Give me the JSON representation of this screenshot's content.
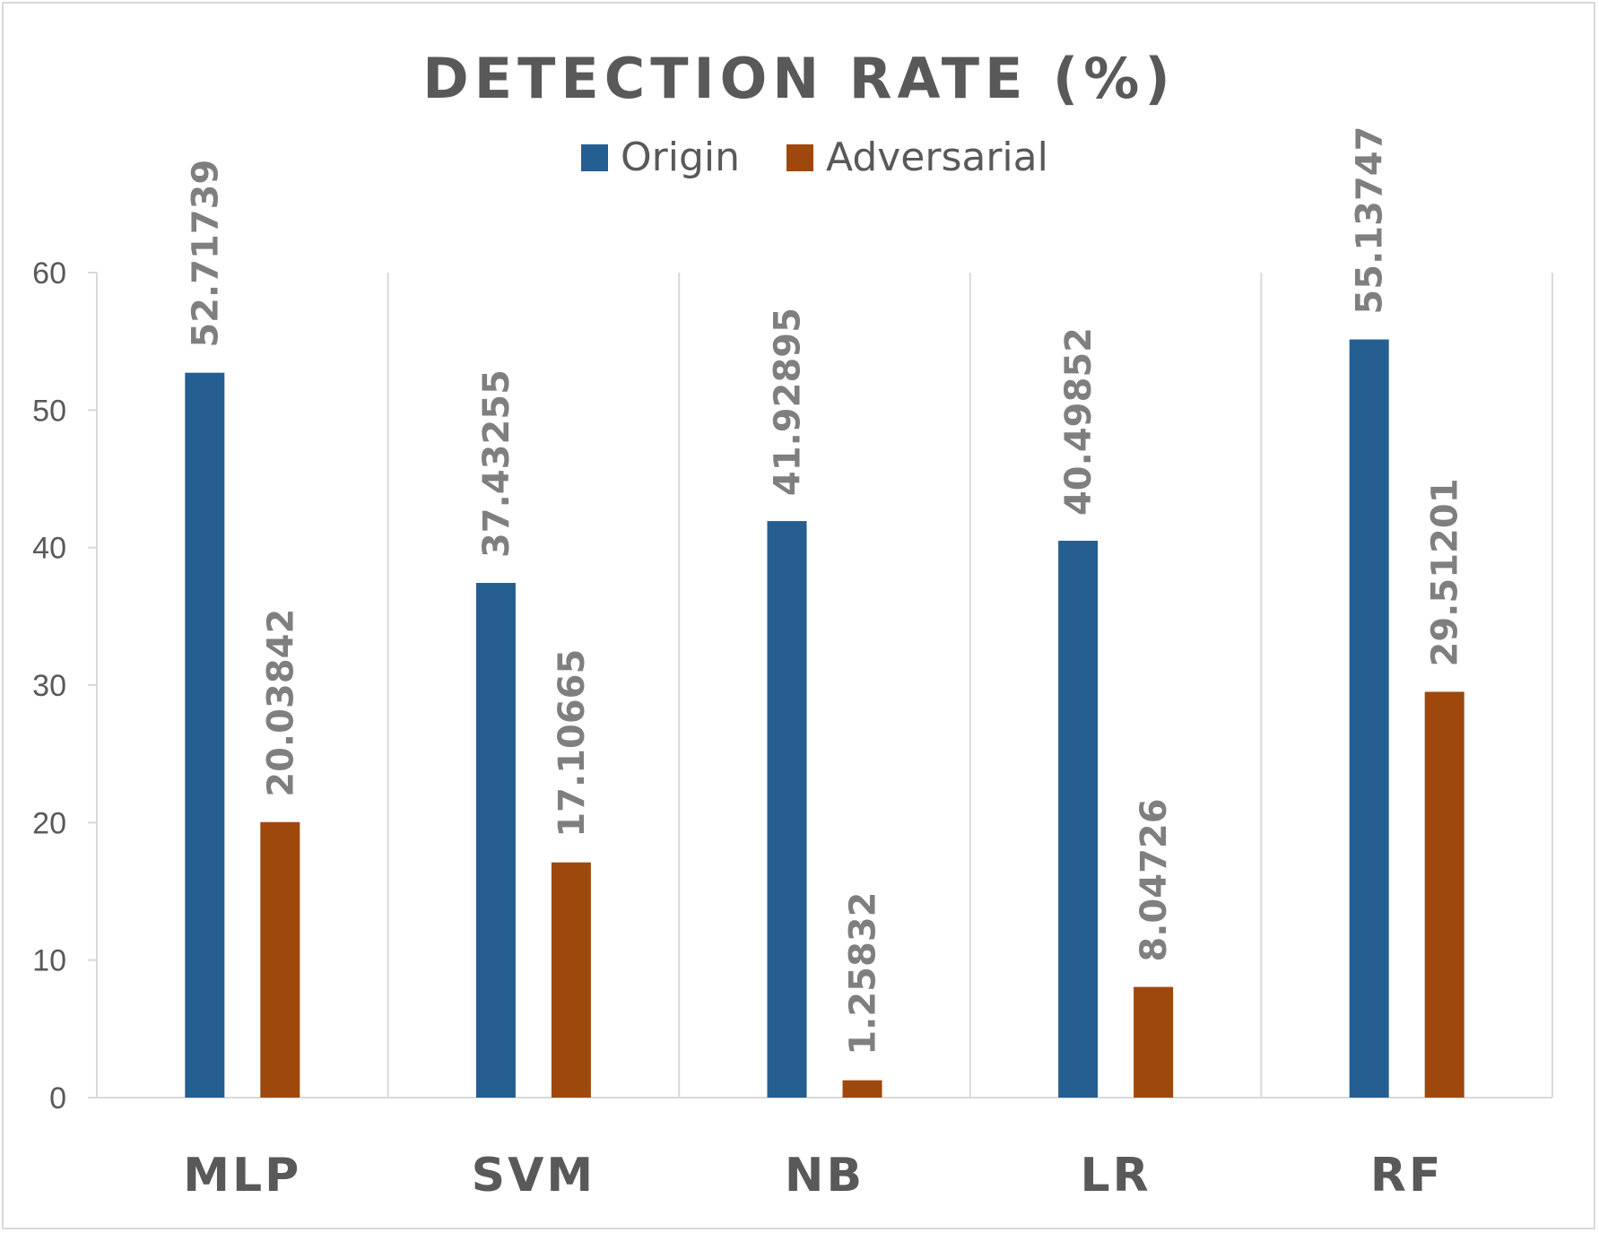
{
  "chart_data": {
    "type": "bar",
    "title": "DETECTION RATE (%)",
    "categories": [
      "MLP",
      "SVM",
      "NB",
      "LR",
      "RF"
    ],
    "series": [
      {
        "name": "Origin",
        "color": "#255e91",
        "values": [
          52.71739,
          37.43255,
          41.92895,
          40.49852,
          55.13747
        ],
        "labels": [
          "52.71739",
          "37.43255",
          "41.92895",
          "40.49852",
          "55.13747"
        ]
      },
      {
        "name": "Adversarial",
        "color": "#9e480e",
        "values": [
          20.03842,
          17.10665,
          1.25832,
          8.04726,
          29.51201
        ],
        "labels": [
          "20.03842",
          "17.10665",
          "1.25832",
          "8.04726",
          "29.51201"
        ]
      }
    ],
    "ylim": [
      0,
      60
    ],
    "yticks": [
      "0",
      "10",
      "20",
      "30",
      "40",
      "50",
      "60"
    ],
    "xlabel": "",
    "ylabel": "",
    "grid": "vertical category separators",
    "legend_position": "top-center",
    "data_labels": "rotated vertical above bars"
  }
}
